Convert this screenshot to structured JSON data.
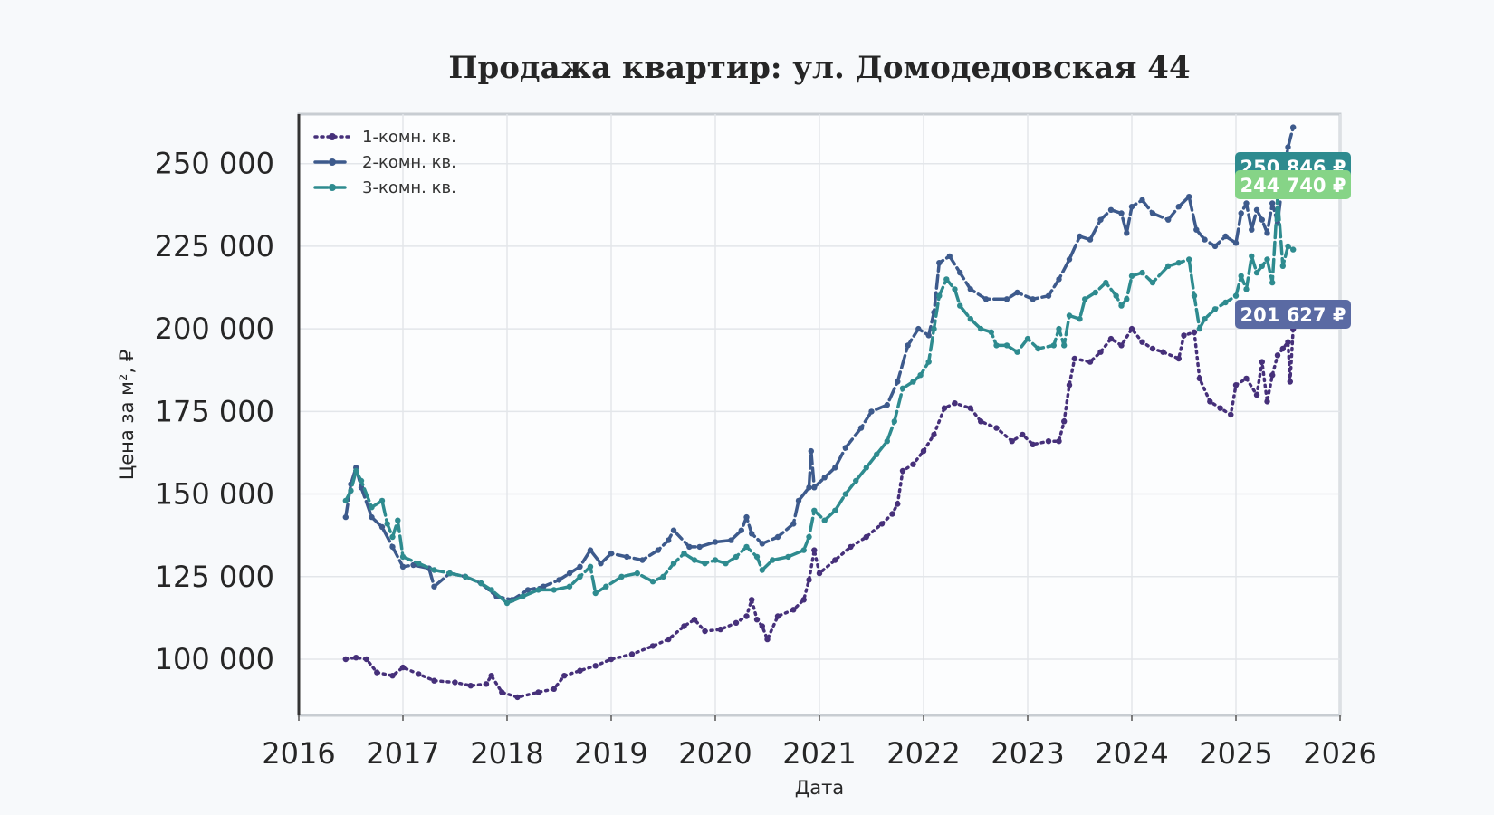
{
  "chart_data": {
    "type": "line",
    "title": "Продажа квартир: ул. Домодедовская 44",
    "xlabel": "Дата",
    "ylabel": "Цена за м², ₽",
    "xlim": [
      2016,
      2026
    ],
    "ylim": [
      83000,
      265000
    ],
    "x_ticks": [
      "2016",
      "2017",
      "2018",
      "2019",
      "2020",
      "2021",
      "2022",
      "2023",
      "2024",
      "2025",
      "2026"
    ],
    "y_ticks": [
      {
        "value": 100000,
        "label": "100 000"
      },
      {
        "value": 125000,
        "label": "125 000"
      },
      {
        "value": 150000,
        "label": "150 000"
      },
      {
        "value": 175000,
        "label": "175 000"
      },
      {
        "value": 200000,
        "label": "200 000"
      },
      {
        "value": 225000,
        "label": "225 000"
      },
      {
        "value": 250000,
        "label": "250 000"
      }
    ],
    "grid": true,
    "legend_position": "top-left",
    "series": [
      {
        "name": "1-комн. кв.",
        "color": "#46307a",
        "dash": "dotted",
        "callout": "201 627 ₽",
        "callout_color": "#5a6aa3",
        "points": [
          [
            2016.45,
            100000
          ],
          [
            2016.55,
            100500
          ],
          [
            2016.65,
            100000
          ],
          [
            2016.75,
            96000
          ],
          [
            2016.9,
            95000
          ],
          [
            2017.0,
            97500
          ],
          [
            2017.15,
            95500
          ],
          [
            2017.3,
            93500
          ],
          [
            2017.5,
            93000
          ],
          [
            2017.65,
            92000
          ],
          [
            2017.8,
            92500
          ],
          [
            2017.85,
            95000
          ],
          [
            2017.95,
            90000
          ],
          [
            2018.1,
            88500
          ],
          [
            2018.3,
            90000
          ],
          [
            2018.45,
            91000
          ],
          [
            2018.55,
            95000
          ],
          [
            2018.7,
            96500
          ],
          [
            2018.85,
            98000
          ],
          [
            2019.0,
            100000
          ],
          [
            2019.2,
            101500
          ],
          [
            2019.4,
            104000
          ],
          [
            2019.55,
            106000
          ],
          [
            2019.7,
            110000
          ],
          [
            2019.8,
            112000
          ],
          [
            2019.9,
            108500
          ],
          [
            2020.05,
            109000
          ],
          [
            2020.2,
            111000
          ],
          [
            2020.3,
            113000
          ],
          [
            2020.35,
            118000
          ],
          [
            2020.4,
            112000
          ],
          [
            2020.45,
            110000
          ],
          [
            2020.5,
            106000
          ],
          [
            2020.6,
            113000
          ],
          [
            2020.75,
            115000
          ],
          [
            2020.85,
            118000
          ],
          [
            2020.9,
            124000
          ],
          [
            2020.95,
            133000
          ],
          [
            2021.0,
            126000
          ],
          [
            2021.15,
            130000
          ],
          [
            2021.3,
            134000
          ],
          [
            2021.45,
            137000
          ],
          [
            2021.6,
            141000
          ],
          [
            2021.7,
            144000
          ],
          [
            2021.75,
            147000
          ],
          [
            2021.8,
            157000
          ],
          [
            2021.9,
            159000
          ],
          [
            2022.0,
            163000
          ],
          [
            2022.1,
            168000
          ],
          [
            2022.2,
            176000
          ],
          [
            2022.3,
            177500
          ],
          [
            2022.45,
            176000
          ],
          [
            2022.55,
            172000
          ],
          [
            2022.7,
            170000
          ],
          [
            2022.85,
            166000
          ],
          [
            2022.95,
            168000
          ],
          [
            2023.05,
            165000
          ],
          [
            2023.2,
            166000
          ],
          [
            2023.3,
            166000
          ],
          [
            2023.35,
            172000
          ],
          [
            2023.4,
            183000
          ],
          [
            2023.45,
            191000
          ],
          [
            2023.6,
            190000
          ],
          [
            2023.7,
            193000
          ],
          [
            2023.8,
            197000
          ],
          [
            2023.9,
            195000
          ],
          [
            2024.0,
            200000
          ],
          [
            2024.1,
            196000
          ],
          [
            2024.2,
            194000
          ],
          [
            2024.3,
            193000
          ],
          [
            2024.45,
            191000
          ],
          [
            2024.5,
            198000
          ],
          [
            2024.6,
            199000
          ],
          [
            2024.65,
            185000
          ],
          [
            2024.75,
            178000
          ],
          [
            2024.85,
            176000
          ],
          [
            2024.95,
            174000
          ],
          [
            2025.0,
            183000
          ],
          [
            2025.1,
            185000
          ],
          [
            2025.2,
            180000
          ],
          [
            2025.25,
            190000
          ],
          [
            2025.3,
            178000
          ],
          [
            2025.35,
            186000
          ],
          [
            2025.4,
            192000
          ],
          [
            2025.45,
            194000
          ],
          [
            2025.5,
            196000
          ],
          [
            2025.52,
            184000
          ],
          [
            2025.55,
            200000
          ]
        ]
      },
      {
        "name": "2-комн. кв.",
        "color": "#3d5a8c",
        "dash": "dashed",
        "callout": "250 846 ₽",
        "callout_color": "#2e8b8f",
        "points": [
          [
            2016.45,
            143000
          ],
          [
            2016.5,
            153000
          ],
          [
            2016.55,
            158000
          ],
          [
            2016.6,
            152000
          ],
          [
            2016.7,
            143000
          ],
          [
            2016.8,
            140000
          ],
          [
            2016.9,
            134000
          ],
          [
            2017.0,
            128000
          ],
          [
            2017.1,
            128500
          ],
          [
            2017.25,
            127500
          ],
          [
            2017.3,
            122000
          ],
          [
            2017.45,
            126000
          ],
          [
            2017.6,
            125000
          ],
          [
            2017.75,
            123000
          ],
          [
            2017.9,
            119000
          ],
          [
            2018.05,
            118000
          ],
          [
            2018.2,
            121000
          ],
          [
            2018.35,
            122000
          ],
          [
            2018.5,
            124000
          ],
          [
            2018.6,
            126000
          ],
          [
            2018.7,
            128000
          ],
          [
            2018.8,
            133000
          ],
          [
            2018.9,
            129000
          ],
          [
            2019.0,
            132000
          ],
          [
            2019.15,
            131000
          ],
          [
            2019.3,
            130000
          ],
          [
            2019.45,
            133000
          ],
          [
            2019.55,
            136000
          ],
          [
            2019.6,
            139000
          ],
          [
            2019.75,
            134000
          ],
          [
            2019.85,
            134000
          ],
          [
            2020.0,
            135500
          ],
          [
            2020.15,
            136000
          ],
          [
            2020.25,
            139000
          ],
          [
            2020.3,
            143000
          ],
          [
            2020.35,
            138000
          ],
          [
            2020.45,
            135000
          ],
          [
            2020.6,
            137000
          ],
          [
            2020.75,
            141000
          ],
          [
            2020.8,
            148000
          ],
          [
            2020.9,
            152000
          ],
          [
            2020.92,
            163000
          ],
          [
            2020.95,
            152000
          ],
          [
            2021.05,
            155000
          ],
          [
            2021.15,
            158000
          ],
          [
            2021.25,
            164000
          ],
          [
            2021.4,
            170000
          ],
          [
            2021.5,
            175000
          ],
          [
            2021.65,
            177000
          ],
          [
            2021.75,
            184000
          ],
          [
            2021.85,
            195000
          ],
          [
            2021.95,
            200000
          ],
          [
            2022.05,
            198000
          ],
          [
            2022.1,
            205000
          ],
          [
            2022.15,
            220000
          ],
          [
            2022.25,
            222000
          ],
          [
            2022.35,
            217000
          ],
          [
            2022.45,
            212000
          ],
          [
            2022.6,
            209000
          ],
          [
            2022.8,
            209000
          ],
          [
            2022.9,
            211000
          ],
          [
            2023.05,
            209000
          ],
          [
            2023.2,
            210000
          ],
          [
            2023.3,
            215000
          ],
          [
            2023.4,
            221000
          ],
          [
            2023.5,
            228000
          ],
          [
            2023.6,
            227000
          ],
          [
            2023.7,
            233000
          ],
          [
            2023.8,
            236000
          ],
          [
            2023.9,
            235000
          ],
          [
            2023.95,
            229000
          ],
          [
            2024.0,
            237000
          ],
          [
            2024.1,
            239000
          ],
          [
            2024.2,
            235000
          ],
          [
            2024.35,
            233000
          ],
          [
            2024.45,
            237000
          ],
          [
            2024.55,
            240000
          ],
          [
            2024.62,
            230000
          ],
          [
            2024.7,
            227000
          ],
          [
            2024.8,
            225000
          ],
          [
            2024.9,
            228000
          ],
          [
            2025.0,
            226000
          ],
          [
            2025.05,
            235000
          ],
          [
            2025.1,
            238000
          ],
          [
            2025.15,
            230000
          ],
          [
            2025.2,
            236000
          ],
          [
            2025.25,
            233000
          ],
          [
            2025.3,
            229000
          ],
          [
            2025.35,
            238000
          ],
          [
            2025.4,
            232000
          ],
          [
            2025.45,
            245000
          ],
          [
            2025.5,
            255000
          ],
          [
            2025.55,
            261000
          ]
        ]
      },
      {
        "name": "3-комн. кв.",
        "color": "#2e8b8f",
        "dash": "dashed",
        "callout": "244 740 ₽",
        "callout_color": "#86d487",
        "points": [
          [
            2016.45,
            148000
          ],
          [
            2016.5,
            151000
          ],
          [
            2016.55,
            157000
          ],
          [
            2016.6,
            154000
          ],
          [
            2016.7,
            146000
          ],
          [
            2016.8,
            148000
          ],
          [
            2016.85,
            141000
          ],
          [
            2016.9,
            137000
          ],
          [
            2016.95,
            142000
          ],
          [
            2017.0,
            131000
          ],
          [
            2017.15,
            129000
          ],
          [
            2017.3,
            127000
          ],
          [
            2017.45,
            126000
          ],
          [
            2017.6,
            125000
          ],
          [
            2017.75,
            123000
          ],
          [
            2017.85,
            121000
          ],
          [
            2018.0,
            117000
          ],
          [
            2018.15,
            119000
          ],
          [
            2018.3,
            121000
          ],
          [
            2018.45,
            121000
          ],
          [
            2018.6,
            122000
          ],
          [
            2018.7,
            125000
          ],
          [
            2018.8,
            128000
          ],
          [
            2018.85,
            120000
          ],
          [
            2018.95,
            122000
          ],
          [
            2019.1,
            125000
          ],
          [
            2019.25,
            126000
          ],
          [
            2019.4,
            123500
          ],
          [
            2019.5,
            125000
          ],
          [
            2019.6,
            129000
          ],
          [
            2019.7,
            132000
          ],
          [
            2019.8,
            130000
          ],
          [
            2019.9,
            129000
          ],
          [
            2020.0,
            130000
          ],
          [
            2020.1,
            129000
          ],
          [
            2020.2,
            131000
          ],
          [
            2020.3,
            134000
          ],
          [
            2020.4,
            131000
          ],
          [
            2020.45,
            127000
          ],
          [
            2020.55,
            130000
          ],
          [
            2020.7,
            131000
          ],
          [
            2020.85,
            133000
          ],
          [
            2020.9,
            137000
          ],
          [
            2020.95,
            145000
          ],
          [
            2021.05,
            142000
          ],
          [
            2021.15,
            145000
          ],
          [
            2021.25,
            150000
          ],
          [
            2021.35,
            154000
          ],
          [
            2021.45,
            158000
          ],
          [
            2021.55,
            162000
          ],
          [
            2021.65,
            166000
          ],
          [
            2021.72,
            172000
          ],
          [
            2021.8,
            182000
          ],
          [
            2021.9,
            184000
          ],
          [
            2021.97,
            186000
          ],
          [
            2022.05,
            190000
          ],
          [
            2022.1,
            200000
          ],
          [
            2022.15,
            210000
          ],
          [
            2022.22,
            215000
          ],
          [
            2022.3,
            212000
          ],
          [
            2022.35,
            207000
          ],
          [
            2022.45,
            203000
          ],
          [
            2022.55,
            200000
          ],
          [
            2022.65,
            199000
          ],
          [
            2022.7,
            195000
          ],
          [
            2022.8,
            195000
          ],
          [
            2022.9,
            193000
          ],
          [
            2023.0,
            197000
          ],
          [
            2023.1,
            194000
          ],
          [
            2023.25,
            195000
          ],
          [
            2023.3,
            200000
          ],
          [
            2023.35,
            195000
          ],
          [
            2023.4,
            204000
          ],
          [
            2023.5,
            203000
          ],
          [
            2023.55,
            209000
          ],
          [
            2023.65,
            211000
          ],
          [
            2023.75,
            214000
          ],
          [
            2023.85,
            210000
          ],
          [
            2023.9,
            207000
          ],
          [
            2023.95,
            209000
          ],
          [
            2024.0,
            216000
          ],
          [
            2024.1,
            217000
          ],
          [
            2024.2,
            214000
          ],
          [
            2024.35,
            219000
          ],
          [
            2024.45,
            220000
          ],
          [
            2024.55,
            221000
          ],
          [
            2024.6,
            210000
          ],
          [
            2024.65,
            200000
          ],
          [
            2024.7,
            203000
          ],
          [
            2024.8,
            206000
          ],
          [
            2024.9,
            208000
          ],
          [
            2025.0,
            210000
          ],
          [
            2025.05,
            216000
          ],
          [
            2025.1,
            212000
          ],
          [
            2025.15,
            222000
          ],
          [
            2025.2,
            217000
          ],
          [
            2025.25,
            219000
          ],
          [
            2025.3,
            221000
          ],
          [
            2025.35,
            214000
          ],
          [
            2025.4,
            240000
          ],
          [
            2025.45,
            219000
          ],
          [
            2025.5,
            225000
          ],
          [
            2025.55,
            224000
          ]
        ]
      }
    ]
  }
}
